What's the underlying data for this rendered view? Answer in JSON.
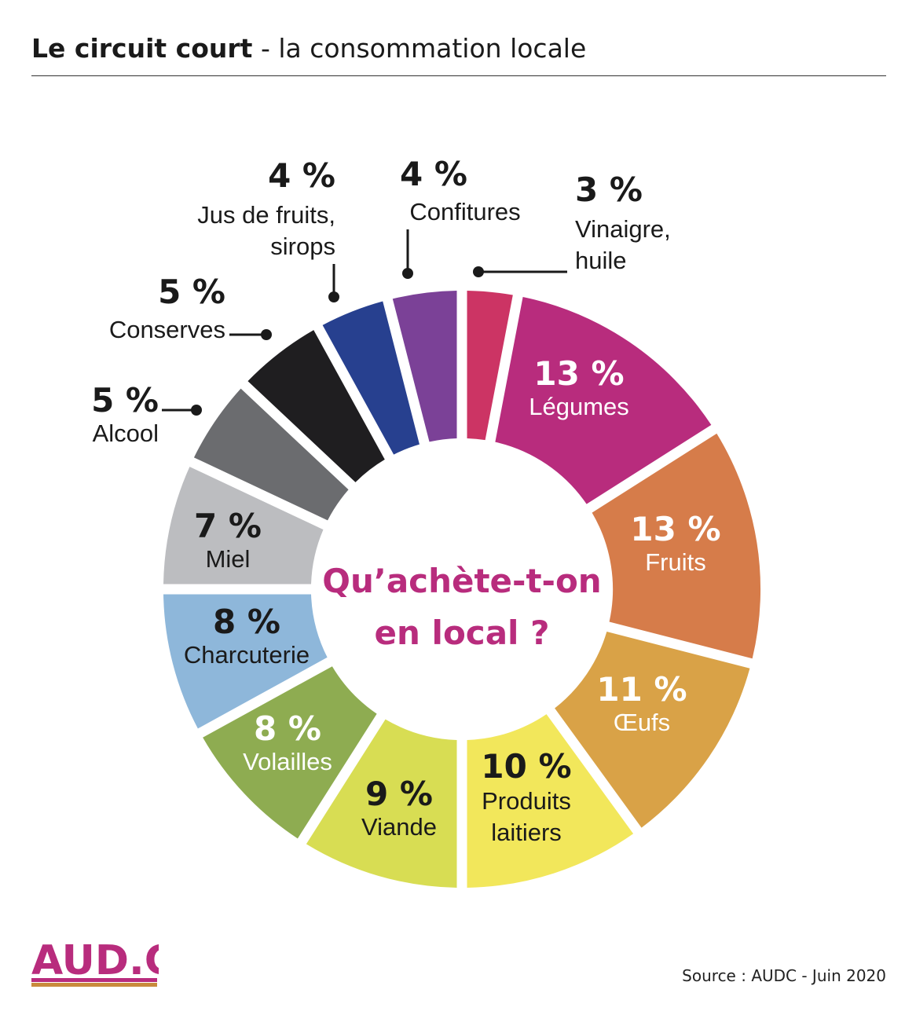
{
  "header": {
    "title_bold": "Le circuit court",
    "title_rest": " - la consommation locale"
  },
  "center_label": {
    "line1": "Qu’achète-t-on",
    "line2": "en local ?"
  },
  "chart_data": {
    "type": "pie",
    "variant": "donut",
    "categories": [
      "Vinaigre, huile",
      "Légumes",
      "Fruits",
      "Œufs",
      "Produits laitiers",
      "Viande",
      "Volailles",
      "Charcuterie",
      "Miel",
      "Alcool",
      "Conserves",
      "Jus de fruits, sirops",
      "Confitures"
    ],
    "values": [
      3,
      13,
      13,
      11,
      10,
      9,
      8,
      8,
      7,
      5,
      5,
      4,
      4
    ],
    "unit": "%",
    "start": "12 o'clock, clockwise",
    "colors": [
      "#cc3464",
      "#b82c7d",
      "#d67c4a",
      "#d9a247",
      "#f2e75b",
      "#d8dd53",
      "#8eac51",
      "#8eb7da",
      "#bcbdc0",
      "#6b6c6f",
      "#1f1e20",
      "#27408f",
      "#7b4197"
    ],
    "slices": [
      {
        "name_lines": [
          "Vinaigre,",
          "huile"
        ],
        "pct_label": "3 %"
      },
      {
        "name_lines": [
          "Légumes"
        ],
        "pct_label": "13 %"
      },
      {
        "name_lines": [
          "Fruits"
        ],
        "pct_label": "13 %"
      },
      {
        "name_lines": [
          "Œufs"
        ],
        "pct_label": "11 %"
      },
      {
        "name_lines": [
          "Produits",
          "laitiers"
        ],
        "pct_label": "10 %"
      },
      {
        "name_lines": [
          "Viande"
        ],
        "pct_label": "9 %"
      },
      {
        "name_lines": [
          "Volailles"
        ],
        "pct_label": "8 %"
      },
      {
        "name_lines": [
          "Charcuterie"
        ],
        "pct_label": "8 %"
      },
      {
        "name_lines": [
          "Miel"
        ],
        "pct_label": "7 %"
      },
      {
        "name_lines": [
          "Alcool"
        ],
        "pct_label": "5 %"
      },
      {
        "name_lines": [
          "Conserves"
        ],
        "pct_label": "5 %"
      },
      {
        "name_lines": [
          "Jus de fruits,",
          "sirops"
        ],
        "pct_label": "4 %"
      },
      {
        "name_lines": [
          "Confitures"
        ],
        "pct_label": "4 %"
      }
    ]
  },
  "logo": {
    "text": "AUD.C",
    "colors": [
      "#b82c7d",
      "#c98a3c"
    ]
  },
  "footer": {
    "source": "Source : AUDC - Juin 2020"
  }
}
